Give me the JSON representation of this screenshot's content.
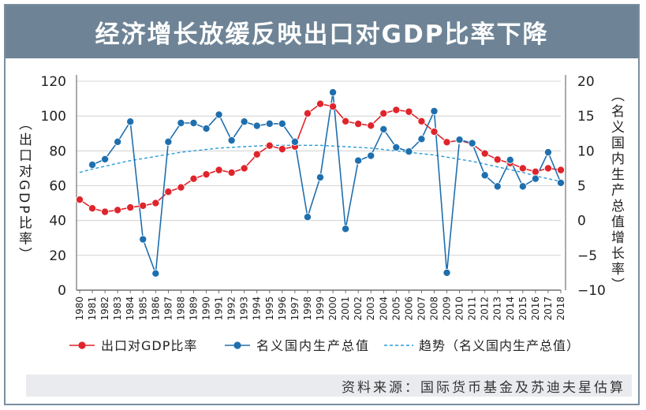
{
  "title": "经济增长放缓反映出口对GDP比率下降",
  "source": "资料来源：国际货币基金及苏迪夫星估算",
  "colors": {
    "export_ratio": "#e0242b",
    "gdp_growth": "#1f6fae",
    "trend": "#2b9bd6",
    "header": "#6e8496"
  },
  "chart_data": {
    "type": "line",
    "title": "经济增长放缓反映出口对GDP比率下降",
    "left_axis_label": "（出口对GDP比率）",
    "right_axis_label": "（名义国内生产总值增长率）",
    "left_ylim": [
      0,
      120
    ],
    "left_ticks": [
      "0",
      "20",
      "40",
      "60",
      "80",
      "100",
      "120"
    ],
    "right_ylim": [
      -10,
      20
    ],
    "right_ticks": [
      "−10",
      "−5",
      "0",
      "5",
      "10",
      "15",
      "20"
    ],
    "grid": "horizontal",
    "legend_position": "bottom",
    "x": [
      "1980",
      "1981",
      "1982",
      "1983",
      "1984",
      "1985",
      "1986",
      "1987",
      "1988",
      "1989",
      "1990",
      "1991",
      "1992",
      "1993",
      "1994",
      "1995",
      "1996",
      "1997",
      "1998",
      "1999",
      "2000",
      "2001",
      "2002",
      "2003",
      "2004",
      "2005",
      "2006",
      "2007",
      "2008",
      "2009",
      "2010",
      "2011",
      "2012",
      "2013",
      "2014",
      "2015",
      "2016",
      "2017",
      "2018"
    ],
    "series": [
      {
        "name": "出口对GDP比率",
        "axis": "left",
        "style": "line-marker",
        "values": [
          52,
          47,
          45,
          46,
          47.5,
          48.5,
          50,
          56.5,
          59,
          64,
          66.5,
          69,
          67.5,
          70,
          78,
          83,
          81,
          82.5,
          101.5,
          107,
          105.5,
          97,
          95.5,
          94.5,
          101.5,
          103.5,
          102.5,
          97,
          91,
          85,
          86,
          84,
          78.5,
          75,
          73,
          70,
          68,
          70,
          69
        ]
      },
      {
        "name": "名义国内生产总值",
        "axis": "right",
        "style": "line-marker",
        "values": [
          null,
          8,
          8.8,
          11.3,
          14.2,
          -2.7,
          -7.6,
          11.3,
          14,
          14,
          13.2,
          15.2,
          11.5,
          14.2,
          13.6,
          13.9,
          13.9,
          11.3,
          0.5,
          6.2,
          18.4,
          -1.2,
          8.6,
          9.3,
          13.1,
          10.5,
          9.9,
          11.7,
          15.7,
          -7.5,
          11.6,
          11.1,
          6.5,
          4.9,
          8.7,
          4.9,
          6,
          9.8,
          5.4
        ]
      },
      {
        "name": "趋势（名义国内生产总值）",
        "axis": "right",
        "style": "dashed",
        "values": [
          6.9,
          7.4,
          7.8,
          8.2,
          8.6,
          8.9,
          9.2,
          9.5,
          9.8,
          10,
          10.2,
          10.4,
          10.5,
          10.6,
          10.7,
          10.8,
          10.8,
          10.8,
          10.8,
          10.8,
          10.7,
          10.6,
          10.5,
          10.4,
          10.2,
          10.0,
          9.8,
          9.6,
          9.4,
          9.1,
          8.8,
          8.5,
          8.1,
          7.7,
          7.3,
          6.9,
          6.4,
          6.0,
          5.6
        ]
      }
    ]
  }
}
